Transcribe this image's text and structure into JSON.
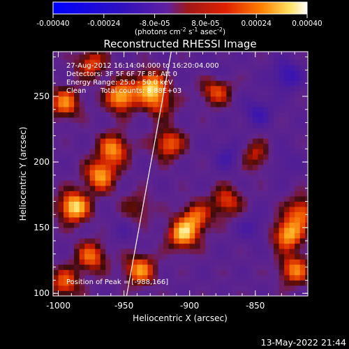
{
  "colorbar": {
    "ticks": [
      "-0.00040",
      "-0.00024",
      "-8.0e-05",
      "8.0e-05",
      "0.00024",
      "0.00040"
    ],
    "tick_values": [
      -0.0004,
      -0.00024,
      -8e-05,
      8e-05,
      0.00024,
      0.0004
    ],
    "range": [
      -0.0004,
      0.0004
    ],
    "units_prefix": "(photons cm",
    "units_exp1": "-2",
    "units_mid": " s",
    "units_exp2": "-1",
    "units_mid2": " asec",
    "units_exp3": "-2",
    "units_suffix": ")"
  },
  "info": {
    "time": "27-Aug-2012 16:14:04.000 to 16:20:04.000",
    "detectors": "Detectors: 3F 5F 6F 7F 8F, Att 0",
    "energy": "Energy Range: 25.0 - 50.0 keV",
    "method": "Clean",
    "counts": "Total counts: 8.88E+03",
    "peak": "Position of Peak = [-988,166]"
  },
  "footer": {
    "date": "13-May-2022 21:44"
  },
  "colors": {
    "negative": "#0000ff",
    "background": "#5a2a8c",
    "mid": "#e02000",
    "max": "#ffffff"
  },
  "chart_data": {
    "type": "heatmap",
    "title": "Reconstructed RHESSI Image",
    "xlabel": "Heliocentric X (arcsec)",
    "ylabel": "Heliocentric Y (arcsec)",
    "xlim": [
      -1004,
      -810
    ],
    "ylim": [
      98,
      284
    ],
    "x_ticks": [
      -1000,
      -950,
      -900,
      -850
    ],
    "x_tick_labels": [
      "-1000",
      "-950",
      "-900",
      "-850"
    ],
    "y_ticks": [
      100,
      150,
      200,
      250
    ],
    "y_tick_labels": [
      "100",
      "150",
      "200",
      "250"
    ],
    "limb_line": [
      [
        -948,
        98
      ],
      [
        -914,
        284
      ]
    ],
    "sources": [
      {
        "x": -988,
        "y": 166,
        "value": 0.0004
      },
      {
        "x": -968,
        "y": 190,
        "value": 0.00032
      },
      {
        "x": -958,
        "y": 210,
        "value": 0.0003
      },
      {
        "x": -952,
        "y": 250,
        "value": 0.00036
      },
      {
        "x": -938,
        "y": 118,
        "value": 0.0003
      },
      {
        "x": -930,
        "y": 258,
        "value": 0.00034
      },
      {
        "x": -916,
        "y": 214,
        "value": 0.00026
      },
      {
        "x": -905,
        "y": 145,
        "value": 0.00034
      },
      {
        "x": -895,
        "y": 158,
        "value": 0.00024
      },
      {
        "x": -880,
        "y": 255,
        "value": 0.00024
      },
      {
        "x": -872,
        "y": 170,
        "value": 0.00022
      },
      {
        "x": -940,
        "y": 165,
        "value": 0.00014
      },
      {
        "x": -995,
        "y": 245,
        "value": 0.00028
      },
      {
        "x": -975,
        "y": 128,
        "value": 0.00026
      },
      {
        "x": -995,
        "y": 108,
        "value": 0.00024
      },
      {
        "x": -975,
        "y": 275,
        "value": 0.00022
      },
      {
        "x": -850,
        "y": 205,
        "value": 0.00018
      },
      {
        "x": -825,
        "y": 145,
        "value": 0.00034
      },
      {
        "x": -820,
        "y": 118,
        "value": 0.00028
      },
      {
        "x": -815,
        "y": 162,
        "value": 0.00026
      },
      {
        "x": -923,
        "y": 245,
        "value": 0.0002
      },
      {
        "x": -880,
        "y": 268,
        "value": -8e-05
      },
      {
        "x": -848,
        "y": 238,
        "value": -0.00014
      },
      {
        "x": -826,
        "y": 266,
        "value": -0.00018
      },
      {
        "x": -870,
        "y": 205,
        "value": -0.00012
      },
      {
        "x": -852,
        "y": 150,
        "value": -0.0001
      },
      {
        "x": -828,
        "y": 200,
        "value": -8e-05
      },
      {
        "x": -950,
        "y": 148,
        "value": -6e-05
      }
    ]
  }
}
